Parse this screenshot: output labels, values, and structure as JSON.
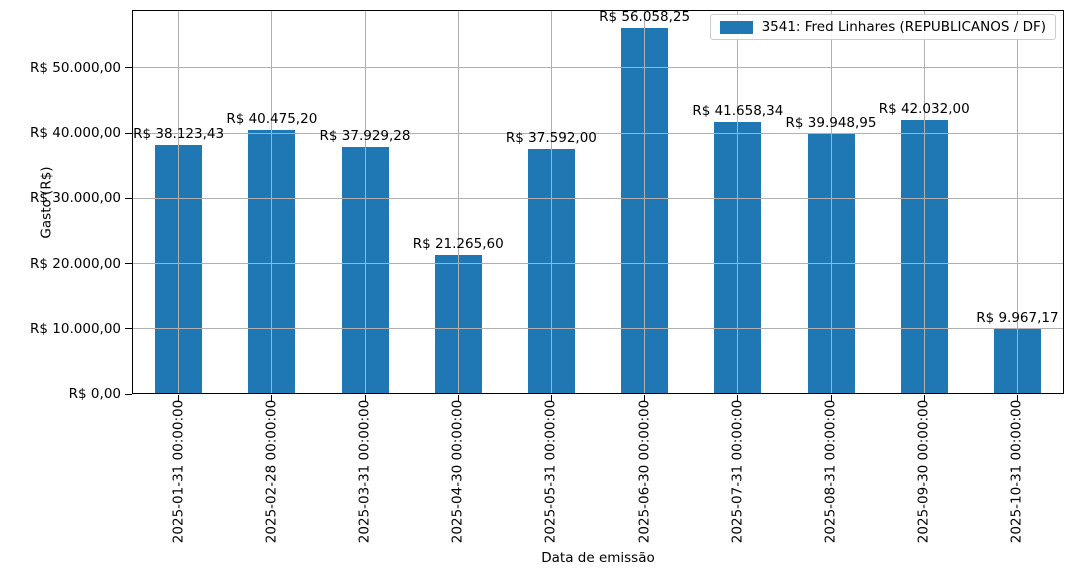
{
  "chart_data": {
    "type": "bar",
    "title": "",
    "xlabel": "Data de emissão",
    "ylabel": "Gasto (R$)",
    "categories": [
      "2025-01-31 00:00:00",
      "2025-02-28 00:00:00",
      "2025-03-31 00:00:00",
      "2025-04-30 00:00:00",
      "2025-05-31 00:00:00",
      "2025-06-30 00:00:00",
      "2025-07-31 00:00:00",
      "2025-08-31 00:00:00",
      "2025-09-30 00:00:00",
      "2025-10-31 00:00:00"
    ],
    "series": [
      {
        "name": "3541: Fred Linhares (REPUBLICANOS / DF)",
        "values": [
          38123.43,
          40475.2,
          37929.28,
          21265.6,
          37592.0,
          56058.25,
          41658.34,
          39948.95,
          42032.0,
          9967.17
        ]
      }
    ],
    "bar_labels": [
      "R$ 38.123,43",
      "R$ 40.475,20",
      "R$ 37.929,28",
      "R$ 21.265,60",
      "R$ 37.592,00",
      "R$ 56.058,25",
      "R$ 41.658,34",
      "R$ 39.948,95",
      "R$ 42.032,00",
      "R$ 9.967,17"
    ],
    "yticks": [
      {
        "value": 0,
        "label": "R$ 0,00"
      },
      {
        "value": 10000,
        "label": "R$ 10.000,00"
      },
      {
        "value": 20000,
        "label": "R$ 20.000,00"
      },
      {
        "value": 30000,
        "label": "R$ 30.000,00"
      },
      {
        "value": 40000,
        "label": "R$ 40.000,00"
      },
      {
        "value": 50000,
        "label": "R$ 50.000,00"
      }
    ],
    "ylim": [
      0,
      58895
    ],
    "grid": true,
    "grid_color": "#b0b0b0",
    "bar_color": "#1f77b4",
    "legend": {
      "label": "3541: Fred Linhares (REPUBLICANOS / DF)",
      "position": "upper right",
      "swatch_color": "#1f77b4"
    }
  }
}
